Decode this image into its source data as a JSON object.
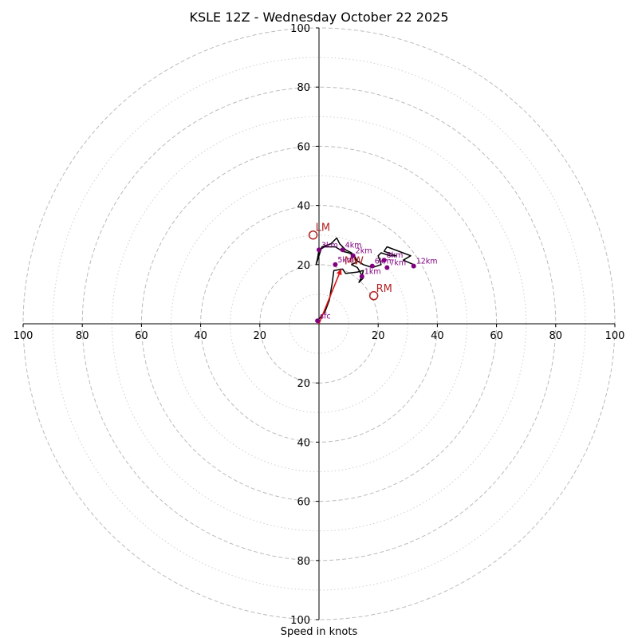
{
  "chart_data": {
    "type": "hodograph",
    "title": "KSLE 12Z - Wednesday October 22 2025",
    "xlabel": "Speed in knots",
    "range": [
      -100,
      100
    ],
    "ring_major_step": 20,
    "ring_minor_offset": 10,
    "x_ticks": [
      -100,
      -80,
      -60,
      -40,
      -20,
      20,
      40,
      60,
      80,
      100
    ],
    "x_tick_labels": [
      "100",
      "80",
      "60",
      "40",
      "20",
      "20",
      "40",
      "60",
      "80",
      "100"
    ],
    "y_ticks": [
      100,
      80,
      60,
      40,
      20,
      -20,
      -40,
      -60,
      -80,
      -100
    ],
    "y_tick_labels": [
      "100",
      "80",
      "60",
      "40",
      "20",
      "20",
      "40",
      "60",
      "80",
      "100"
    ],
    "colors": {
      "trace": "#000000",
      "markers": "#800080",
      "mean_wind": "#dd1111",
      "storm_motion": "#b22222",
      "ring_major": "#bbbbbb",
      "ring_minor": "#d0d0d0",
      "axes": "#000000"
    },
    "hodograph_trace": [
      [
        -0.5,
        1
      ],
      [
        2,
        4
      ],
      [
        3.5,
        8
      ],
      [
        4.5,
        14
      ],
      [
        5,
        18
      ],
      [
        8,
        18.5
      ],
      [
        9,
        17
      ],
      [
        13,
        17.5
      ],
      [
        15,
        18
      ],
      [
        14.5,
        16
      ],
      [
        13.5,
        14
      ],
      [
        15,
        15.5
      ],
      [
        13,
        19
      ],
      [
        11,
        20
      ],
      [
        13,
        21
      ],
      [
        12,
        23
      ],
      [
        10,
        24
      ],
      [
        8,
        24.5
      ],
      [
        5.5,
        26
      ],
      [
        2,
        26
      ],
      [
        0,
        25
      ],
      [
        -0.5,
        22
      ],
      [
        -1,
        20
      ],
      [
        1,
        26
      ],
      [
        4,
        27
      ],
      [
        6,
        29
      ],
      [
        7,
        27
      ],
      [
        9,
        25
      ],
      [
        11,
        24
      ],
      [
        12.5,
        21.5
      ],
      [
        15,
        20
      ],
      [
        18,
        19
      ],
      [
        21,
        20
      ],
      [
        20,
        23
      ],
      [
        21,
        24
      ],
      [
        24,
        23
      ],
      [
        26,
        23
      ],
      [
        22,
        24.5
      ],
      [
        23,
        26
      ],
      [
        31,
        23
      ],
      [
        28.5,
        21.5
      ],
      [
        32,
        20
      ]
    ],
    "height_markers": [
      {
        "label": "sfc",
        "u": -0.5,
        "v": 1
      },
      {
        "label": "1km",
        "u": 14.5,
        "v": 16
      },
      {
        "label": "2km",
        "u": 11.5,
        "v": 23
      },
      {
        "label": "3km",
        "u": 0,
        "v": 25
      },
      {
        "label": "4km",
        "u": 8,
        "v": 25
      },
      {
        "label": "5km",
        "u": 5.5,
        "v": 20
      },
      {
        "label": "6km",
        "u": 18,
        "v": 19.5
      },
      {
        "label": "7km",
        "u": 23,
        "v": 19
      },
      {
        "label": "8km",
        "u": 22,
        "v": 21.5
      },
      {
        "label": "12km",
        "u": 32,
        "v": 19.5
      }
    ],
    "mean_wind": {
      "label": "MW",
      "u": 7.5,
      "v": 18.5
    },
    "storm_motions": [
      {
        "label": "LM",
        "u": -2,
        "v": 30
      },
      {
        "label": "RM",
        "u": 18.5,
        "v": 9.5
      }
    ]
  }
}
